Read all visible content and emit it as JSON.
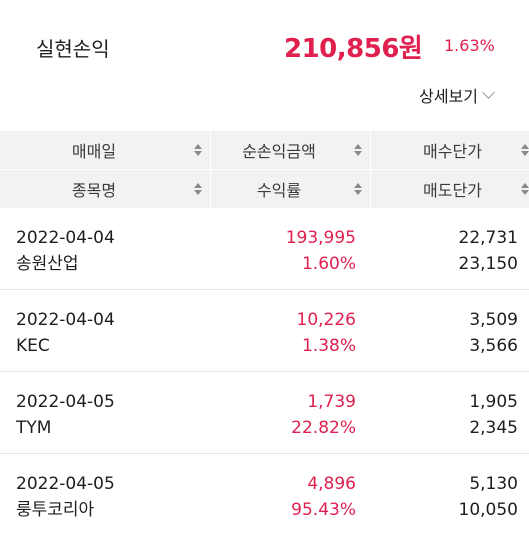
{
  "summary": {
    "label": "실현손익",
    "amount": "210,856원",
    "rate": "1.63%",
    "detail_label": "상세보기",
    "accent_color": "#e0204f"
  },
  "table": {
    "headers": {
      "trade_date": "매매일",
      "stock_name": "종목명",
      "net_profit": "순손익금액",
      "return_rate": "수익률",
      "buy_price": "매수단가",
      "sell_price": "매도단가"
    },
    "rows": [
      {
        "date": "2022-04-04",
        "name": "송원산업",
        "pnl": "193,995",
        "rate": "1.60%",
        "buy": "22,731",
        "sell": "23,150"
      },
      {
        "date": "2022-04-04",
        "name": "KEC",
        "pnl": "10,226",
        "rate": "1.38%",
        "buy": "3,509",
        "sell": "3,566"
      },
      {
        "date": "2022-04-05",
        "name": "TYM",
        "pnl": "1,739",
        "rate": "22.82%",
        "buy": "1,905",
        "sell": "2,345"
      },
      {
        "date": "2022-04-05",
        "name": "룽투코리아",
        "pnl": "4,896",
        "rate": "95.43%",
        "buy": "5,130",
        "sell": "10,050"
      }
    ]
  }
}
